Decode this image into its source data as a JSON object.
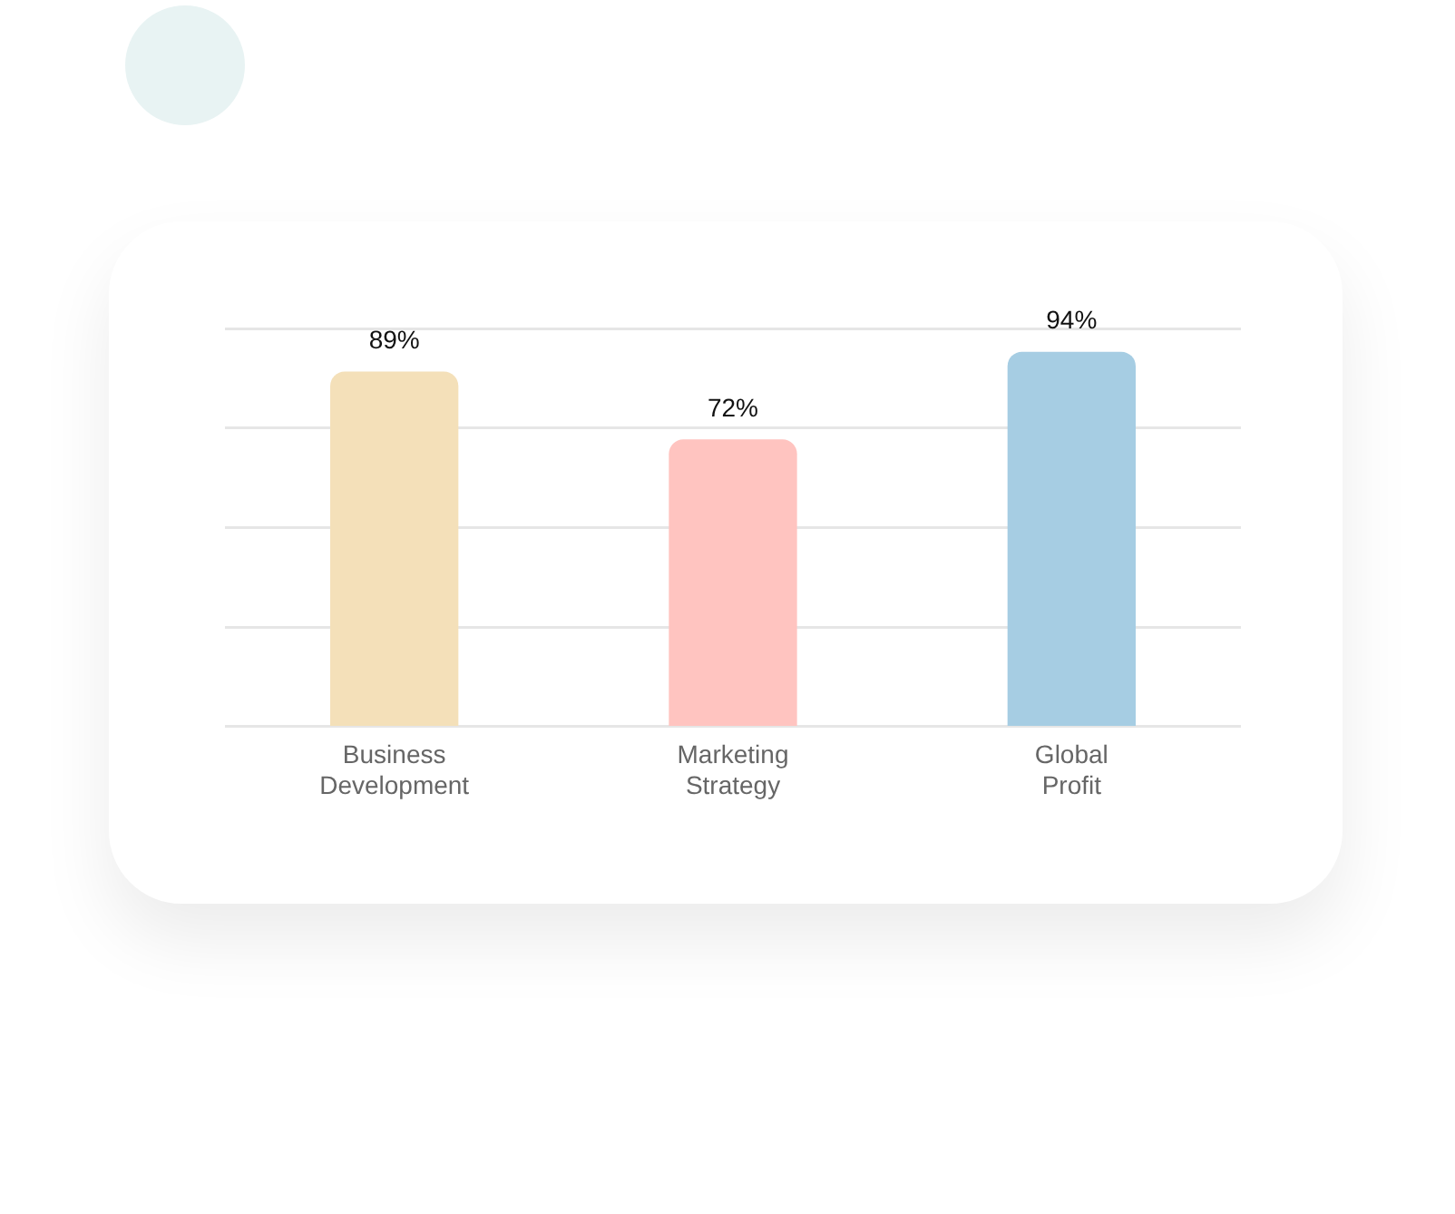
{
  "chart_data": {
    "type": "bar",
    "categories": [
      "Business Development",
      "Marketing Strategy",
      "Global Profit"
    ],
    "values": [
      89,
      72,
      94
    ],
    "colors": [
      "#f4e0b9",
      "#ffc4c0",
      "#a6cde3"
    ],
    "ylim": [
      0,
      100
    ],
    "yticks": [
      {
        "value": 0,
        "label": null
      },
      {
        "value": 25,
        "label": null
      },
      {
        "value": 50,
        "label": null
      },
      {
        "value": 75,
        "label": null
      },
      {
        "value": 100,
        "label": null
      }
    ],
    "grid": "y",
    "tick_labels": "x",
    "legend": false,
    "data_labels": true,
    "value_labels": [
      "89%",
      "72%",
      "94%"
    ]
  }
}
